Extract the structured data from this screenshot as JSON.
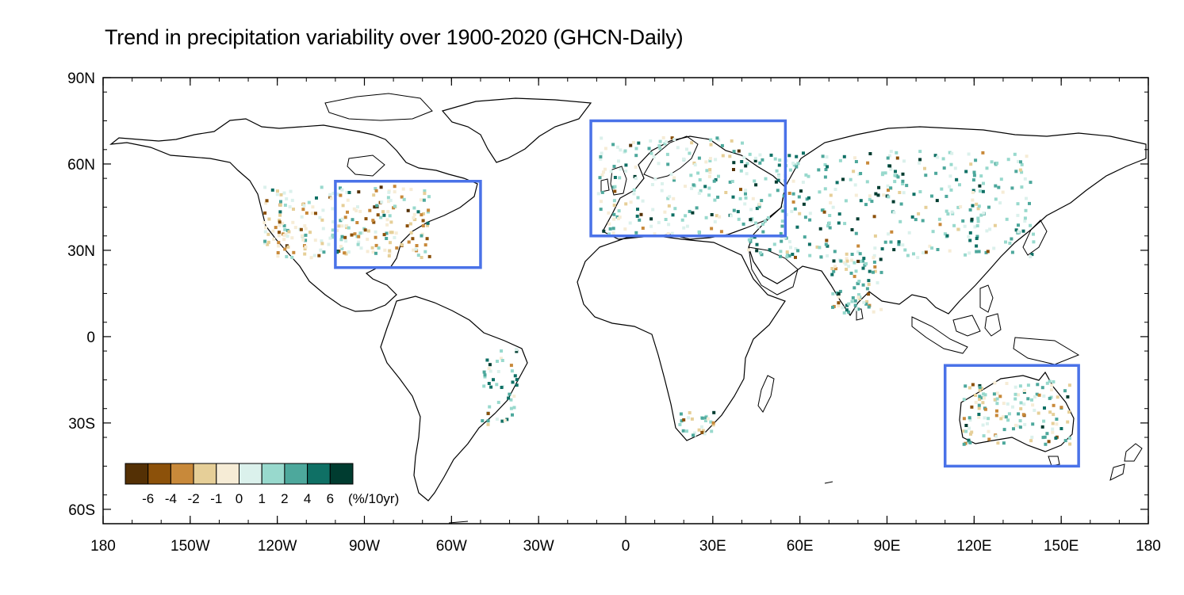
{
  "title": "Trend in precipitation variability over 1900-2020 (GHCN-Daily)",
  "map": {
    "projection": "cylindrical-equidistant",
    "lon_range": [
      -180,
      180
    ],
    "lat_range": [
      -65,
      90
    ],
    "lat_ticks": [
      {
        "value": 90,
        "label": "90N"
      },
      {
        "value": 60,
        "label": "60N"
      },
      {
        "value": 30,
        "label": "30N"
      },
      {
        "value": 0,
        "label": "0"
      },
      {
        "value": -30,
        "label": "30S"
      },
      {
        "value": -60,
        "label": "60S"
      }
    ],
    "lon_ticks": [
      {
        "value": -180,
        "label": "180"
      },
      {
        "value": -150,
        "label": "150W"
      },
      {
        "value": -120,
        "label": "120W"
      },
      {
        "value": -90,
        "label": "90W"
      },
      {
        "value": -60,
        "label": "60W"
      },
      {
        "value": -30,
        "label": "30W"
      },
      {
        "value": 0,
        "label": "0"
      },
      {
        "value": 30,
        "label": "30E"
      },
      {
        "value": 60,
        "label": "60E"
      },
      {
        "value": 90,
        "label": "90E"
      },
      {
        "value": 120,
        "label": "120E"
      },
      {
        "value": 150,
        "label": "150E"
      },
      {
        "value": 180,
        "label": "180"
      }
    ],
    "highlight_color": "#4a72e8",
    "highlight_boxes": [
      {
        "region": "North America (eastern US)",
        "lon": [
          -100,
          -50
        ],
        "lat": [
          24,
          54
        ]
      },
      {
        "region": "Europe",
        "lon": [
          -12,
          55
        ],
        "lat": [
          35,
          75
        ]
      },
      {
        "region": "Australia",
        "lon": [
          110,
          156
        ],
        "lat": [
          -45,
          -10
        ]
      }
    ]
  },
  "colorbar": {
    "colors": [
      "#543005",
      "#8c510a",
      "#c8893a",
      "#e6cf98",
      "#f6ecd6",
      "#dbf1ec",
      "#98d9cd",
      "#4da89c",
      "#0f7065",
      "#003c30"
    ],
    "labels": [
      "-6",
      "-4",
      "-2",
      "-1",
      "0",
      "1",
      "2",
      "4",
      "6"
    ],
    "units": "(%/10yr)"
  }
}
